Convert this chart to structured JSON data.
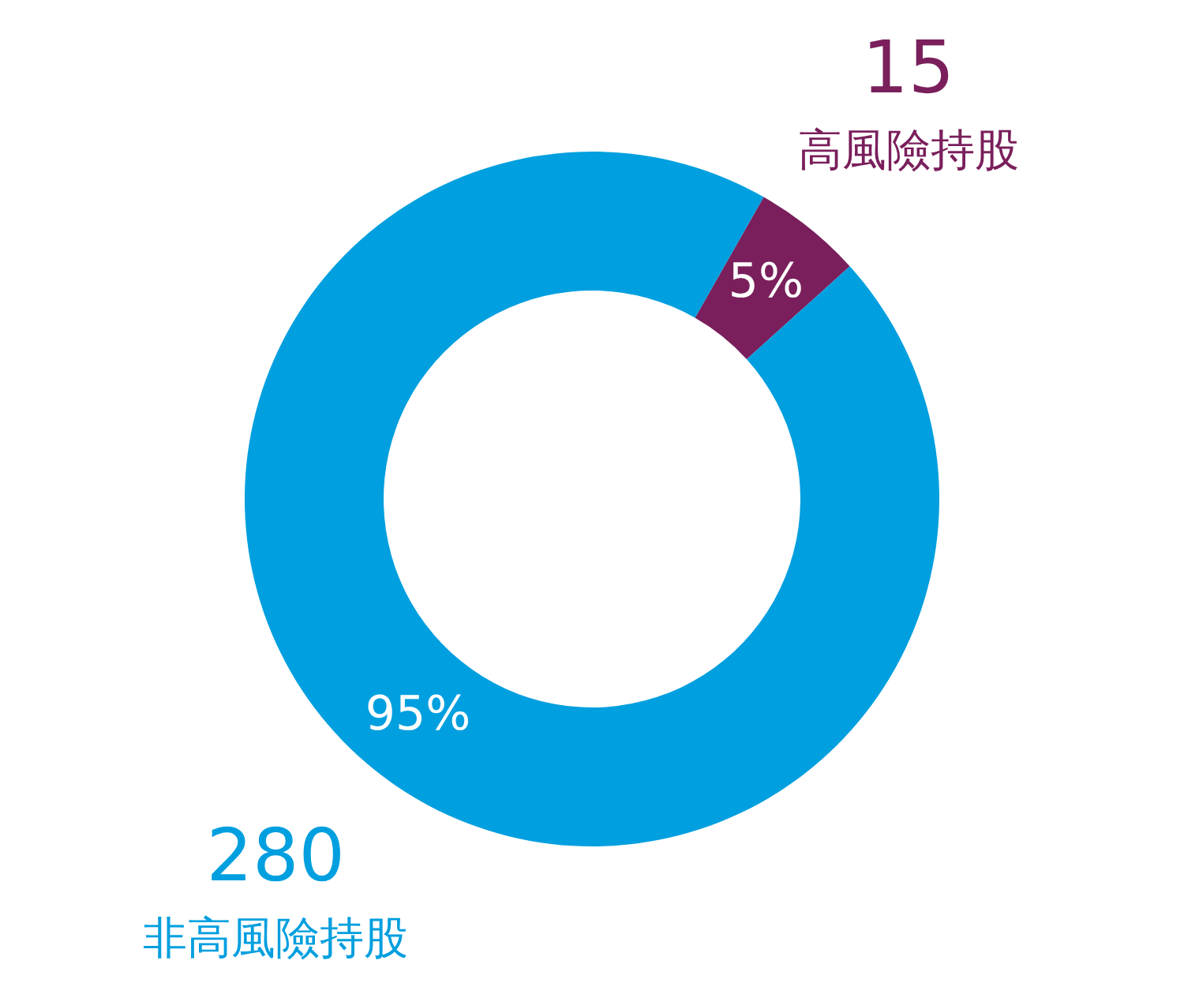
{
  "chart_data": {
    "type": "donut",
    "categories": [
      "高風險持股",
      "非高風險持股"
    ],
    "values": [
      15,
      280
    ],
    "colors": [
      "#7a1f5c",
      "#009fdf"
    ],
    "value_labels": [
      "15",
      "280"
    ],
    "annotations": [
      "5%",
      "95%"
    ]
  }
}
